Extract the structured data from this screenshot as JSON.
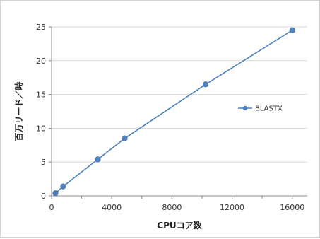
{
  "chart_data": {
    "type": "line",
    "xlabel": "CPUコア数",
    "ylabel": "百万リード／時",
    "xlim": [
      0,
      17000
    ],
    "ylim": [
      0,
      25
    ],
    "xticks": [
      0,
      4000,
      8000,
      12000,
      16000
    ],
    "yticks": [
      0,
      5,
      10,
      15,
      20,
      25
    ],
    "grid": true,
    "legend_position": "right",
    "series": [
      {
        "name": "BLASTX",
        "color": "#4f81bd",
        "marker": "circle",
        "x": [
          256,
          768,
          3072,
          4864,
          10240,
          16000
        ],
        "y": [
          0.4,
          1.4,
          5.4,
          8.5,
          16.5,
          24.5
        ]
      }
    ]
  }
}
